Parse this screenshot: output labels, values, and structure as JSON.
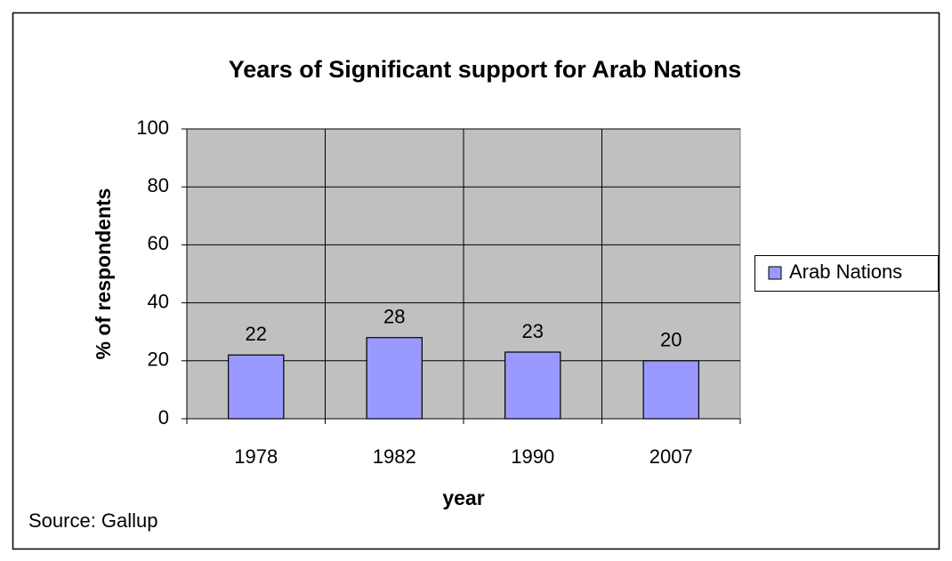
{
  "chart_data": {
    "type": "bar",
    "title": "Years of Significant support for Arab Nations",
    "categories": [
      "1978",
      "1982",
      "1990",
      "2007"
    ],
    "series": [
      {
        "name": "Arab Nations",
        "color": "#9999ff",
        "values": [
          22,
          28,
          23,
          20
        ]
      }
    ],
    "ylim": [
      0,
      100
    ],
    "yticks": [
      0,
      20,
      40,
      60,
      80,
      100
    ],
    "grid": true,
    "xlabel": "year",
    "ylabel": "% of respondents",
    "source": "Source: Gallup",
    "legend": "right",
    "plot_background": "#c0c0c0"
  }
}
